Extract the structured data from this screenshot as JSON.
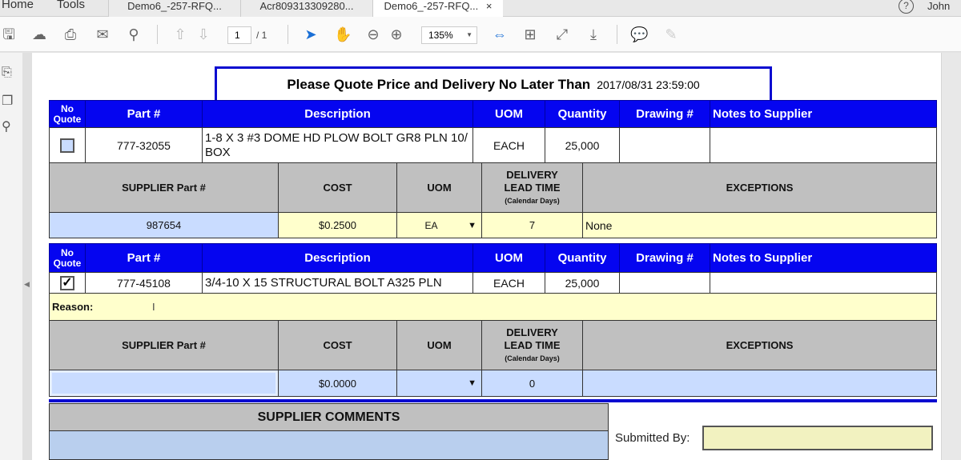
{
  "app": {
    "nav": [
      "Home",
      "Tools"
    ],
    "tabs": [
      {
        "label": "Demo6_-257-RFQ...",
        "active": false
      },
      {
        "label": "Acr809313309280...",
        "active": false
      },
      {
        "label": "Demo6_-257-RFQ...",
        "active": true,
        "close": "×"
      }
    ],
    "user": "John",
    "help": "?"
  },
  "toolbar": {
    "page_current": "1",
    "page_total": "/ 1",
    "zoom": "135%"
  },
  "form": {
    "title": "Please Quote Price and Delivery No Later Than",
    "deadline": "2017/08/31 23:59:00",
    "item_headers": {
      "no_quote": "No Quote",
      "part": "Part #",
      "description": "Description",
      "uom": "UOM",
      "quantity": "Quantity",
      "drawing": "Drawing #",
      "notes": "Notes to Supplier"
    },
    "supplier_headers": {
      "supplier_part": "SUPPLIER Part #",
      "cost": "COST",
      "uom": "UOM",
      "delivery": "DELIVERY LEAD TIME",
      "delivery_sub": "(Calendar Days)",
      "exceptions": "EXCEPTIONS"
    },
    "items": [
      {
        "no_quote": false,
        "part": "777-32055",
        "description": "1-8 X 3 #3 DOME HD PLOW BOLT GR8 PLN 10/ BOX",
        "uom": "EACH",
        "quantity": "25,000",
        "drawing": "",
        "notes": "",
        "supplier_part": "987654",
        "cost": "$0.2500",
        "supplier_uom": "EA",
        "lead_time": "7",
        "exceptions": "None"
      },
      {
        "no_quote": true,
        "check": "✓",
        "part": "777-45108",
        "description": "3/4-10 X 15 STRUCTURAL BOLT A325 PLN",
        "uom": "EACH",
        "quantity": "25,000",
        "drawing": "",
        "notes": "",
        "reason_label": "Reason:",
        "supplier_part": "",
        "cost": "$0.0000",
        "supplier_uom": "",
        "lead_time": "0",
        "exceptions": ""
      }
    ],
    "comments_label": "SUPPLIER COMMENTS",
    "submitted_by_label": "Submitted By:",
    "submitted_by": ""
  },
  "colors": {
    "header_blue": "#0505f0",
    "gray": "#c0c0c0",
    "yellow": "#ffffcc",
    "light_blue": "#c9dcff"
  }
}
